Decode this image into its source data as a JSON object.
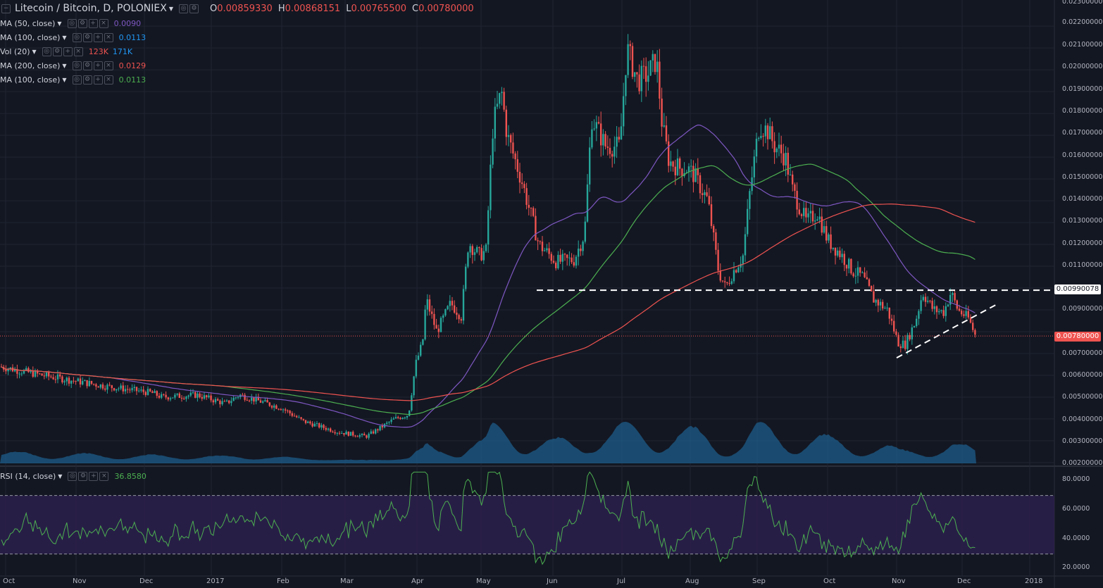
{
  "header": {
    "symbol_title": "Litecoin / Bitcoin, D, POLONIEX",
    "ohlc": [
      {
        "label": "O",
        "value": "0.00859330"
      },
      {
        "label": "H",
        "value": "0.00868151"
      },
      {
        "label": "L",
        "value": "0.00765500"
      },
      {
        "label": "C",
        "value": "0.00780000"
      }
    ]
  },
  "indicators": [
    {
      "name": "MA (50, close)",
      "value": "0.0090",
      "color": "#7e57c2"
    },
    {
      "name": "MA (100, close)",
      "value": "0.0113",
      "color": "#2196f3"
    },
    {
      "name": "Vol (20)",
      "value": "123K",
      "value2": "171K",
      "color": "#ef5350",
      "color2": "#2196f3"
    },
    {
      "name": "MA (200, close)",
      "value": "0.0129",
      "color": "#ef5350"
    },
    {
      "name": "MA (100, close)",
      "value": "0.0113",
      "color": "#4caf50"
    }
  ],
  "rsi": {
    "name": "RSI (14, close)",
    "value": "36.8580",
    "color": "#4caf50"
  },
  "price_axis": [
    "0.02300000",
    "0.02200000",
    "0.02100000",
    "0.02000000",
    "0.01900000",
    "0.01800000",
    "0.01700000",
    "0.01600000",
    "0.01500000",
    "0.01400000",
    "0.01300000",
    "0.01200000",
    "0.01100000",
    "0.00900000",
    "0.00700000",
    "0.00600000",
    "0.00500000",
    "0.00400000",
    "0.00300000",
    "0.00200000"
  ],
  "price_tags": {
    "resistance": "0.00990078",
    "last": "0.00780000"
  },
  "rsi_axis": [
    "80.0000",
    "60.0000",
    "40.0000",
    "20.0000"
  ],
  "time_axis": [
    "Oct",
    "Nov",
    "Dec",
    "2017",
    "Feb",
    "Mar",
    "Apr",
    "May",
    "Jun",
    "Jul",
    "Aug",
    "Sep",
    "Oct",
    "Nov",
    "Dec",
    "2018"
  ],
  "colors": {
    "background": "#131722",
    "up": "#26a69a",
    "down": "#ef5350",
    "rsi_band": "#2a1f4a"
  },
  "chart_data": {
    "type": "candlestick",
    "ylim": [
      0.0019,
      0.0232
    ],
    "ma_series": [
      {
        "name": "MA (50, close)",
        "color": "#7e57c2"
      },
      {
        "name": "MA (100, close)",
        "color": "#4caf50"
      },
      {
        "name": "MA (200, close)",
        "color": "#ef5350"
      }
    ],
    "resistance_level": 0.00990078,
    "rsi_bands": [
      70,
      30
    ]
  }
}
